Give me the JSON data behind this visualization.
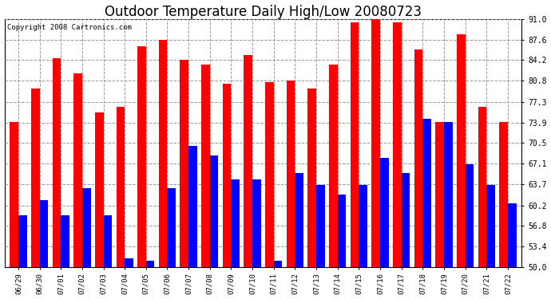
{
  "title": "Outdoor Temperature Daily High/Low 20080723",
  "copyright": "Copyright 2008 Cartronics.com",
  "dates": [
    "06/29",
    "06/30",
    "07/01",
    "07/02",
    "07/03",
    "07/04",
    "07/05",
    "07/06",
    "07/07",
    "07/08",
    "07/09",
    "07/10",
    "07/11",
    "07/12",
    "07/13",
    "07/14",
    "07/15",
    "07/16",
    "07/17",
    "07/18",
    "07/19",
    "07/20",
    "07/21",
    "07/22"
  ],
  "highs": [
    74.0,
    79.5,
    84.5,
    82.0,
    75.5,
    76.5,
    86.5,
    87.5,
    84.2,
    83.5,
    80.3,
    85.0,
    80.5,
    80.8,
    79.5,
    83.5,
    90.5,
    91.0,
    90.5,
    86.0,
    74.0,
    88.5,
    76.5,
    74.0
  ],
  "lows": [
    58.5,
    61.0,
    58.5,
    63.0,
    58.5,
    51.5,
    51.0,
    63.0,
    70.0,
    68.5,
    64.5,
    64.5,
    51.0,
    65.5,
    63.5,
    62.0,
    63.5,
    68.0,
    65.5,
    74.5,
    74.0,
    67.0,
    63.5,
    60.5
  ],
  "high_color": "#ff0000",
  "low_color": "#0000ff",
  "background_color": "#ffffff",
  "plot_bg_color": "#ffffff",
  "ymin": 50.0,
  "ymax": 91.0,
  "yticks": [
    50.0,
    53.4,
    56.8,
    60.2,
    63.7,
    67.1,
    70.5,
    73.9,
    77.3,
    80.8,
    84.2,
    87.6,
    91.0
  ],
  "ytick_labels": [
    "50.0",
    "53.4",
    "56.8",
    "60.2",
    "63.7",
    "67.1",
    "70.5",
    "73.9",
    "77.3",
    "80.8",
    "84.2",
    "87.6",
    "91.0"
  ],
  "title_fontsize": 12,
  "grid_color": "#999999",
  "bar_width": 0.4
}
